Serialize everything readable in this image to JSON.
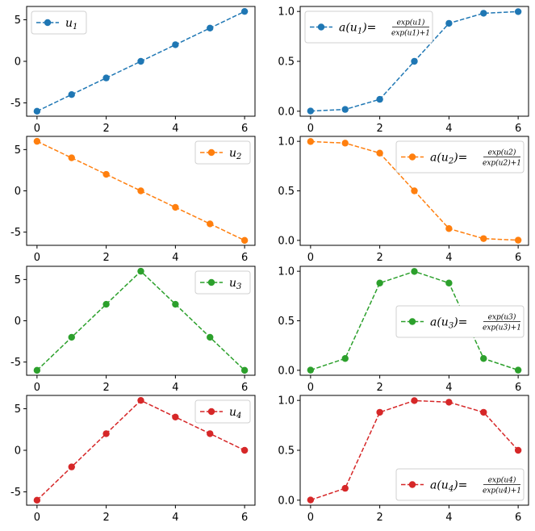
{
  "chart_data": [
    {
      "type": "line",
      "panel": "u1",
      "color": "#1f77b4",
      "x": [
        0,
        1,
        2,
        3,
        4,
        5,
        6
      ],
      "y": [
        -6,
        -4,
        -2,
        0,
        2,
        4,
        6
      ],
      "yticks": [
        "5",
        "0",
        "-5"
      ],
      "ytick_values": [
        5,
        0,
        -5
      ],
      "ylim": [
        -6.6,
        6.6
      ],
      "xticks": [
        "0",
        "2",
        "4",
        "6"
      ],
      "xtick_values": [
        0,
        2,
        4,
        6
      ],
      "xlim": [
        -0.3,
        6.3
      ],
      "legend": {
        "kind": "u",
        "index": "1",
        "placement": "upper left"
      }
    },
    {
      "type": "line",
      "panel": "a(u1)",
      "color": "#1f77b4",
      "x": [
        0,
        1,
        2,
        3,
        4,
        5,
        6
      ],
      "y": [
        0.002,
        0.018,
        0.119,
        0.5,
        0.881,
        0.982,
        0.998
      ],
      "yticks": [
        "1.0",
        "0.5",
        "0.0"
      ],
      "ytick_values": [
        1,
        0.5,
        0
      ],
      "ylim": [
        -0.05,
        1.05
      ],
      "xticks": [
        "0",
        "2",
        "4",
        "6"
      ],
      "xtick_values": [
        0,
        2,
        4,
        6
      ],
      "xlim": [
        -0.3,
        6.3
      ],
      "legend": {
        "kind": "a",
        "index": "1",
        "placement": "upper left"
      }
    },
    {
      "type": "line",
      "panel": "u2",
      "color": "#ff7f0e",
      "x": [
        0,
        1,
        2,
        3,
        4,
        5,
        6
      ],
      "y": [
        6,
        4,
        2,
        0,
        -2,
        -4,
        -6
      ],
      "yticks": [
        "5",
        "0",
        "-5"
      ],
      "ytick_values": [
        5,
        0,
        -5
      ],
      "ylim": [
        -6.6,
        6.6
      ],
      "xticks": [
        "0",
        "2",
        "4",
        "6"
      ],
      "xtick_values": [
        0,
        2,
        4,
        6
      ],
      "xlim": [
        -0.3,
        6.3
      ],
      "legend": {
        "kind": "u",
        "index": "2",
        "placement": "upper right"
      }
    },
    {
      "type": "line",
      "panel": "a(u2)",
      "color": "#ff7f0e",
      "x": [
        0,
        1,
        2,
        3,
        4,
        5,
        6
      ],
      "y": [
        0.998,
        0.982,
        0.881,
        0.5,
        0.119,
        0.018,
        0.002
      ],
      "yticks": [
        "1.0",
        "0.5",
        "0.0"
      ],
      "ytick_values": [
        1,
        0.5,
        0
      ],
      "ylim": [
        -0.05,
        1.05
      ],
      "xticks": [
        "0",
        "2",
        "4",
        "6"
      ],
      "xtick_values": [
        0,
        2,
        4,
        6
      ],
      "xlim": [
        -0.3,
        6.3
      ],
      "legend": {
        "kind": "a",
        "index": "2",
        "placement": "upper right"
      }
    },
    {
      "type": "line",
      "panel": "u3",
      "color": "#2ca02c",
      "x": [
        0,
        1,
        2,
        3,
        4,
        5,
        6
      ],
      "y": [
        -6,
        -2,
        2,
        6,
        2,
        -2,
        -6
      ],
      "yticks": [
        "5",
        "0",
        "-5"
      ],
      "ytick_values": [
        5,
        0,
        -5
      ],
      "ylim": [
        -6.6,
        6.6
      ],
      "xticks": [
        "0",
        "2",
        "4",
        "6"
      ],
      "xtick_values": [
        0,
        2,
        4,
        6
      ],
      "xlim": [
        -0.3,
        6.3
      ],
      "legend": {
        "kind": "u",
        "index": "3",
        "placement": "upper right"
      }
    },
    {
      "type": "line",
      "panel": "a(u3)",
      "color": "#2ca02c",
      "x": [
        0,
        1,
        2,
        3,
        4,
        5,
        6
      ],
      "y": [
        0.002,
        0.119,
        0.881,
        0.998,
        0.881,
        0.119,
        0.002
      ],
      "yticks": [
        "1.0",
        "0.5",
        "0.0"
      ],
      "ytick_values": [
        1,
        0.5,
        0
      ],
      "ylim": [
        -0.05,
        1.05
      ],
      "xticks": [
        "0",
        "2",
        "4",
        "6"
      ],
      "xtick_values": [
        0,
        2,
        4,
        6
      ],
      "xlim": [
        -0.3,
        6.3
      ],
      "legend": {
        "kind": "a",
        "index": "3",
        "placement": "center right"
      }
    },
    {
      "type": "line",
      "panel": "u4",
      "color": "#d62728",
      "x": [
        0,
        1,
        2,
        3,
        4,
        5,
        6
      ],
      "y": [
        -6,
        -2,
        2,
        6,
        4,
        2,
        0
      ],
      "yticks": [
        "5",
        "0",
        "-5"
      ],
      "ytick_values": [
        5,
        0,
        -5
      ],
      "ylim": [
        -6.6,
        6.6
      ],
      "xticks": [
        "0",
        "2",
        "4",
        "6"
      ],
      "xtick_values": [
        0,
        2,
        4,
        6
      ],
      "xlim": [
        -0.3,
        6.3
      ],
      "legend": {
        "kind": "u",
        "index": "4",
        "placement": "upper right"
      }
    },
    {
      "type": "line",
      "panel": "a(u4)",
      "color": "#d62728",
      "x": [
        0,
        1,
        2,
        3,
        4,
        5,
        6
      ],
      "y": [
        0.002,
        0.119,
        0.881,
        0.998,
        0.982,
        0.881,
        0.5
      ],
      "yticks": [
        "1.0",
        "0.5",
        "0.0"
      ],
      "ytick_values": [
        1,
        0.5,
        0
      ],
      "ylim": [
        -0.05,
        1.05
      ],
      "xticks": [
        "0",
        "2",
        "4",
        "6"
      ],
      "xtick_values": [
        0,
        2,
        4,
        6
      ],
      "xlim": [
        -0.3,
        6.3
      ],
      "legend": {
        "kind": "a",
        "index": "4",
        "placement": "lower right"
      }
    }
  ]
}
